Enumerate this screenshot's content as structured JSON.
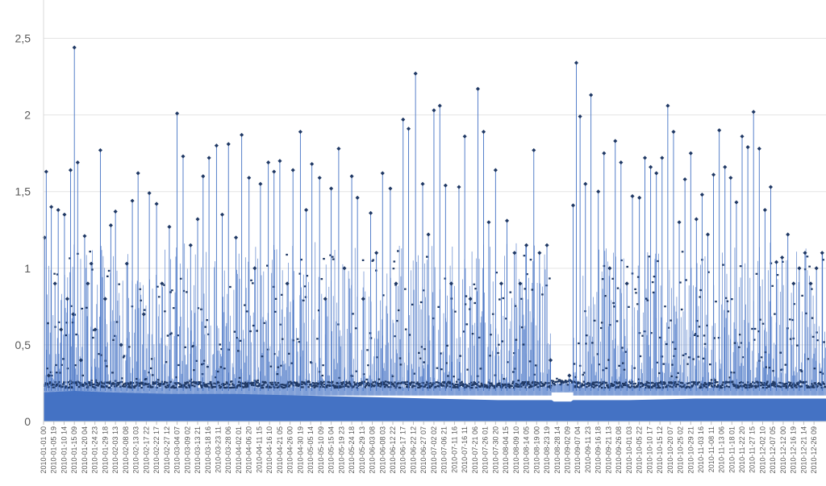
{
  "chart_data": {
    "type": "line",
    "title": "",
    "xlabel": "",
    "ylabel": "",
    "ylim": [
      0,
      2.75
    ],
    "y_ticks": [
      "0",
      "0,5",
      "1",
      "1,5",
      "2",
      "2,5"
    ],
    "y_tick_values": [
      0,
      0.5,
      1,
      1.5,
      2,
      2.5
    ],
    "x_tick_labels": [
      "2010-01-01 00",
      "2010-01-05 19",
      "2010-01-10 14",
      "2010-01-15 09",
      "2010-01-20 04",
      "2010-01-24 23",
      "2010-01-29 18",
      "2010-02-03 13",
      "2010-02-08 08",
      "2010-02-13 03",
      "2010-02-17 22",
      "2010-02-22 17",
      "2010-02-27 12",
      "2010-03-04 07",
      "2010-03-09 02",
      "2010-03-13 21",
      "2010-03-18 16",
      "2010-03-23 11",
      "2010-03-28 06",
      "2010-04-02 01",
      "2010-04-06 20",
      "2010-04-11 15",
      "2010-04-16 10",
      "2010-04-21 05",
      "2010-04-26 00",
      "2010-04-30 19",
      "2010-05-05 14",
      "2010-05-10 09",
      "2010-05-15 04",
      "2010-05-19 23",
      "2010-05-24 18",
      "2010-05-29 13",
      "2010-06-03 08",
      "2010-06-08 03",
      "2010-06-12 22",
      "2010-06-17 17",
      "2010-06-22 12",
      "2010-06-27 07",
      "2010-07-02 02",
      "2010-07-06 21",
      "2010-07-11 16",
      "2010-07-16 11",
      "2010-07-21 06",
      "2010-07-26 01",
      "2010-07-30 20",
      "2010-08-04 15",
      "2010-08-09 10",
      "2010-08-14 05",
      "2010-08-19 00",
      "2010-08-23 19",
      "2010-08-28 14",
      "2010-09-02 09",
      "2010-09-07 04",
      "2010-09-11 23",
      "2010-09-16 18",
      "2010-09-21 13",
      "2010-09-26 08",
      "2010-10-01 03",
      "2010-10-05 22",
      "2010-10-10 17",
      "2010-10-15 12",
      "2010-10-20 07",
      "2010-10-25 02",
      "2010-10-29 21",
      "2010-11-03 16",
      "2010-11-08 11",
      "2010-11-13 06",
      "2010-11-18 01",
      "2010-11-22 20",
      "2010-11-27 15",
      "2010-12-02 10",
      "2010-12-07 05",
      "2010-12-12 00",
      "2010-12-16 19",
      "2010-12-21 14",
      "2010-12-26 09"
    ],
    "series": [
      {
        "kind": "area",
        "color": "#4472C4",
        "x": [
          "2010-01-01 00",
          "2010-01-15 09",
          "2010-02-01 00",
          "2010-03-01 00",
          "2010-04-01 00",
          "2010-05-01 00",
          "2010-06-01 00",
          "2010-07-01 00",
          "2010-08-01 00",
          "2010-08-26 00",
          "2010-08-27 00",
          "2010-09-04 00",
          "2010-09-05 00",
          "2010-10-01 00",
          "2010-11-01 00",
          "2010-12-01 00",
          "2010-12-31 23"
        ],
        "values": [
          0.19,
          0.2,
          0.19,
          0.18,
          0.18,
          0.17,
          0.16,
          0.15,
          0.14,
          0.14,
          0.13,
          0.13,
          0.14,
          0.14,
          0.15,
          0.15,
          0.15
        ]
      },
      {
        "kind": "line-marker",
        "color": "#1F3864",
        "line_color": "#4472C4",
        "x": [
          "2010-01-01 12",
          "2010-01-02 06",
          "2010-01-03 10",
          "2010-01-04 15",
          "2010-01-06 08",
          "2010-01-07 20",
          "2010-01-09 04",
          "2010-01-10 18",
          "2010-01-12 02",
          "2010-01-13 14",
          "2010-01-14 20",
          "2010-01-15 09",
          "2010-01-16 22",
          "2010-01-18 10",
          "2010-01-20 04",
          "2010-01-21 16",
          "2010-01-23 06",
          "2010-01-25 02",
          "2010-01-27 12",
          "2010-01-29 18",
          "2010-02-01 09",
          "2010-02-03 13",
          "2010-02-06 04",
          "2010-02-08 20",
          "2010-02-11 10",
          "2010-02-14 02",
          "2010-02-16 18",
          "2010-02-19 08",
          "2010-02-22 17",
          "2010-02-25 06",
          "2010-02-28 16",
          "2010-03-04 07",
          "2010-03-07 02",
          "2010-03-10 14",
          "2010-03-13 21",
          "2010-03-16 10",
          "2010-03-19 04",
          "2010-03-22 16",
          "2010-03-25 08",
          "2010-03-28 06",
          "2010-03-31 18",
          "2010-04-03 10",
          "2010-04-06 20",
          "2010-04-09 12",
          "2010-04-12 04",
          "2010-04-15 20",
          "2010-04-18 12",
          "2010-04-21 05",
          "2010-04-24 16",
          "2010-04-27 08",
          "2010-04-30 19",
          "2010-05-03 12",
          "2010-05-06 04",
          "2010-05-09 18",
          "2010-05-12 10",
          "2010-05-15 04",
          "2010-05-18 16",
          "2010-05-21 08",
          "2010-05-24 18",
          "2010-05-27 10",
          "2010-05-30 02",
          "2010-06-02 14",
          "2010-06-05 06",
          "2010-06-08 03",
          "2010-06-11 18",
          "2010-06-14 10",
          "2010-06-17 17",
          "2010-06-20 06",
          "2010-06-23 12",
          "2010-06-26 20",
          "2010-06-29 12",
          "2010-07-02 02",
          "2010-07-04 20",
          "2010-07-07 12",
          "2010-07-10 04",
          "2010-07-13 18",
          "2010-07-16 11",
          "2010-07-19 02",
          "2010-07-22 14",
          "2010-07-25 06",
          "2010-07-27 16",
          "2010-07-30 20",
          "2010-08-02 12",
          "2010-08-05 04",
          "2010-08-08 16",
          "2010-08-11 08",
          "2010-08-14 05",
          "2010-08-17 16",
          "2010-08-20 08",
          "2010-08-23 19",
          "2010-08-25 12",
          "2010-08-30 12",
          "2010-09-03 06",
          "2010-09-05 00",
          "2010-09-06 12",
          "2010-09-08 06",
          "2010-09-10 18",
          "2010-09-13 08",
          "2010-09-16 18",
          "2010-09-19 10",
          "2010-09-22 02",
          "2010-09-24 16",
          "2010-09-27 08",
          "2010-09-30 02",
          "2010-10-02 16",
          "2010-10-05 22",
          "2010-10-08 12",
          "2010-10-11 04",
          "2010-10-13 20",
          "2010-10-16 12",
          "2010-10-19 04",
          "2010-10-21 20",
          "2010-10-24 12",
          "2010-10-27 04",
          "2010-10-29 21",
          "2010-11-01 12",
          "2010-11-04 04",
          "2010-11-06 20",
          "2010-11-09 12",
          "2010-11-12 04",
          "2010-11-14 20",
          "2010-11-17 12",
          "2010-11-20 04",
          "2010-11-22 20",
          "2010-11-25 12",
          "2010-11-28 04",
          "2010-11-30 20",
          "2010-12-03 12",
          "2010-12-06 04",
          "2010-12-08 20",
          "2010-12-11 12",
          "2010-12-14 04",
          "2010-12-16 20",
          "2010-12-19 12",
          "2010-12-22 04",
          "2010-12-24 20",
          "2010-12-27 12",
          "2010-12-30 04"
        ],
        "values": [
          1.2,
          1.63,
          0.3,
          1.4,
          0.9,
          1.38,
          0.6,
          1.35,
          0.8,
          1.64,
          0.7,
          2.44,
          1.69,
          0.4,
          1.21,
          0.9,
          1.03,
          0.6,
          1.77,
          0.8,
          1.28,
          1.37,
          0.5,
          1.03,
          1.44,
          1.62,
          0.7,
          1.49,
          1.42,
          0.9,
          1.27,
          2.01,
          1.73,
          1.15,
          1.32,
          1.6,
          1.72,
          1.8,
          1.35,
          1.81,
          1.2,
          1.87,
          1.59,
          1.0,
          1.55,
          1.69,
          1.63,
          1.7,
          0.9,
          1.64,
          1.89,
          1.38,
          1.68,
          1.59,
          0.8,
          1.52,
          1.78,
          1.0,
          1.6,
          1.46,
          0.8,
          1.36,
          1.1,
          1.62,
          1.52,
          0.9,
          1.97,
          1.91,
          2.27,
          1.55,
          1.22,
          2.03,
          2.06,
          1.54,
          0.9,
          1.53,
          1.86,
          0.8,
          2.17,
          1.89,
          1.3,
          1.64,
          0.9,
          1.31,
          1.1,
          0.9,
          1.15,
          1.77,
          1.1,
          1.15,
          0.4,
          0.26,
          0.3,
          1.41,
          2.34,
          1.99,
          1.55,
          2.13,
          1.5,
          1.75,
          1.0,
          1.83,
          1.69,
          0.9,
          1.47,
          1.46,
          1.72,
          1.66,
          1.62,
          1.72,
          2.06,
          1.89,
          1.3,
          1.58,
          1.75,
          1.32,
          1.48,
          1.22,
          1.61,
          1.9,
          1.66,
          1.59,
          1.43,
          1.86,
          1.79,
          2.02,
          1.78,
          1.38,
          1.53,
          1.04,
          1.07,
          1.22,
          0.9,
          1.0,
          1.1,
          0.9,
          1.0,
          1.1
        ]
      }
    ],
    "gridlines": true,
    "legend": "none"
  }
}
